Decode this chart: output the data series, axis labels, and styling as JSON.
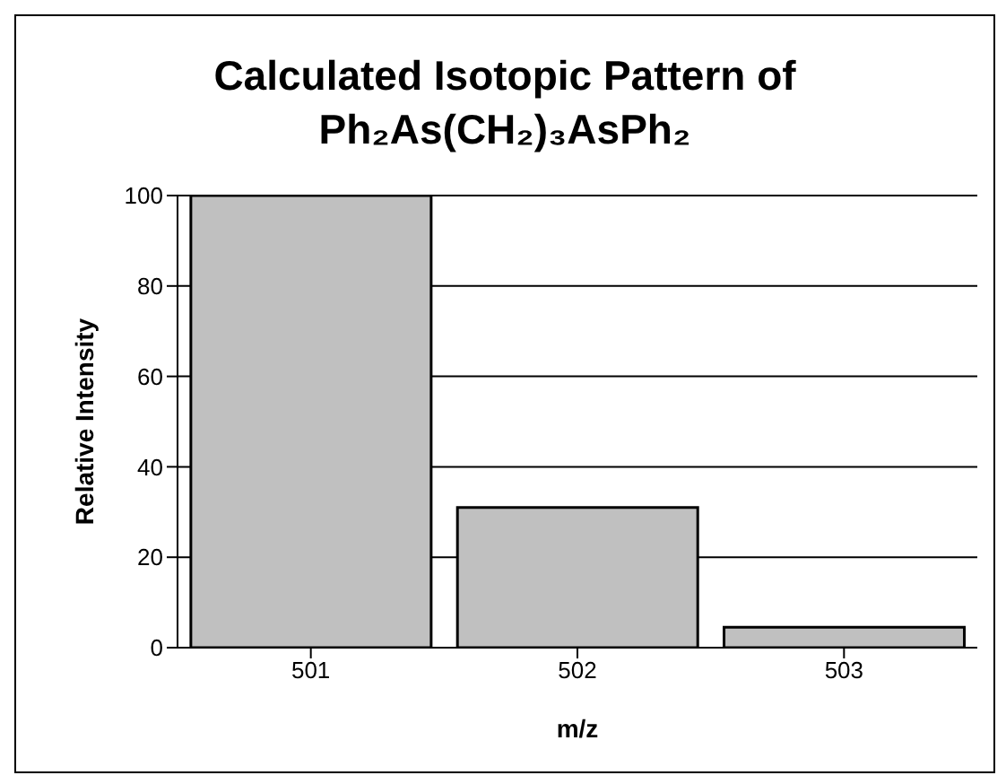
{
  "chart_data": {
    "type": "bar",
    "title": "Calculated Isotopic Pattern of Ph₂As(CH₂)₃AsPh₂",
    "xlabel": "m/z",
    "ylabel": "Relative Intensity",
    "categories": [
      "501",
      "502",
      "503"
    ],
    "values": [
      100,
      31,
      4.5
    ],
    "color": "#c0c0c0",
    "ylim": [
      0,
      100
    ],
    "yticks": [
      0,
      20,
      40,
      60,
      80,
      100
    ],
    "grid": "y"
  }
}
